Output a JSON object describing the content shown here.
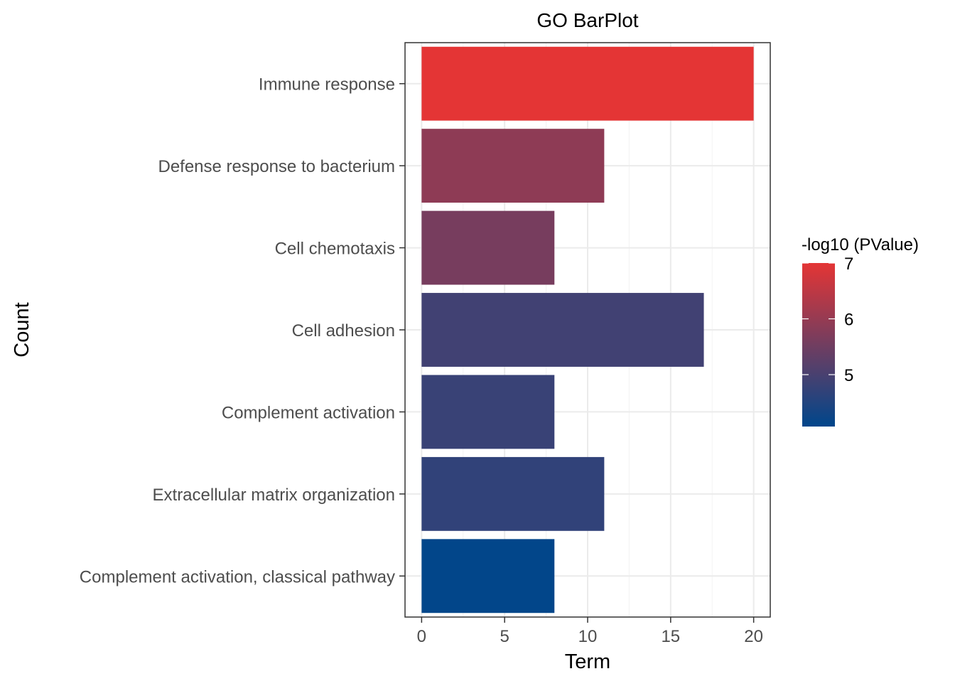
{
  "chart_data": {
    "type": "bar",
    "orientation": "horizontal",
    "title": "GO BarPlot",
    "xlabel": "Term",
    "ylabel": "Count",
    "categories": [
      "Immune response",
      "Defense response to bacterium",
      "Cell chemotaxis",
      "Cell adhesion",
      "Complement activation",
      "Extracellular matrix organization",
      "Complement activation, classical pathway"
    ],
    "values": [
      20,
      11,
      8,
      17,
      8,
      11,
      8
    ],
    "color_values": [
      7.0,
      5.9,
      5.6,
      4.9,
      4.8,
      4.7,
      4.1
    ],
    "xlim": [
      -1,
      21
    ],
    "x_ticks": [
      0,
      5,
      10,
      15,
      20
    ],
    "grid": true,
    "legend": {
      "title": "-log10 (PValue)",
      "position": "right",
      "range": [
        4.07,
        7.0
      ],
      "ticks": [
        5,
        6,
        7
      ],
      "low_color": "#00468B",
      "high_color": "#E43535"
    }
  }
}
